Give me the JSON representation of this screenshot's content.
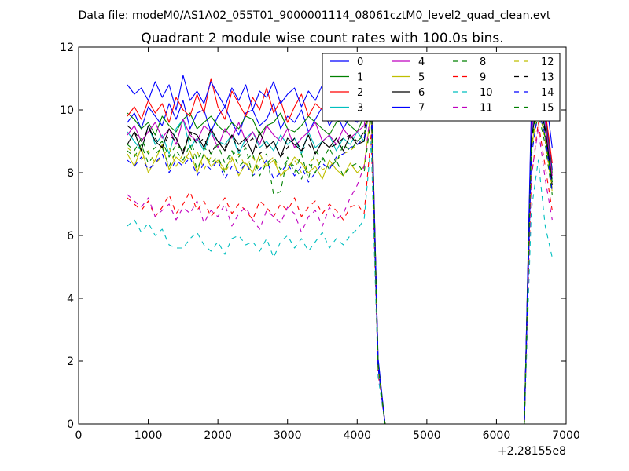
{
  "figure": {
    "suptitle": "Data file: modeM0/AS1A02_055T01_9000001114_08061cztM0_level2_quad_clean.evt"
  },
  "chart_data": {
    "type": "line",
    "title": "Quadrant 2 module wise count rates with 100.0s bins.",
    "xlabel": "",
    "ylabel": "",
    "xlim": [
      0,
      7000
    ],
    "ylim": [
      0,
      12
    ],
    "x_offset_label": "+2.28155e8",
    "x_ticks": [
      0,
      1000,
      2000,
      3000,
      4000,
      5000,
      6000,
      7000
    ],
    "y_ticks": [
      0,
      2,
      4,
      6,
      8,
      10,
      12
    ],
    "grid": false,
    "legend_position": "top-right",
    "legend_columns": 4,
    "x": [
      700,
      800,
      900,
      1000,
      1100,
      1200,
      1300,
      1400,
      1500,
      1600,
      1700,
      1800,
      1900,
      2000,
      2100,
      2200,
      2300,
      2400,
      2500,
      2600,
      2700,
      2800,
      2900,
      3000,
      3100,
      3200,
      3300,
      3400,
      3500,
      3600,
      3700,
      3800,
      3900,
      4000,
      4100,
      4200,
      4300,
      4400,
      4500,
      4600,
      4700,
      4800,
      4900,
      5000,
      5100,
      5200,
      5300,
      5400,
      5500,
      5600,
      5700,
      5800,
      5900,
      6000,
      6100,
      6200,
      6300,
      6400,
      6500,
      6600,
      6700,
      6800
    ],
    "series": [
      {
        "name": "0",
        "color": "#0000ff",
        "dash": "solid",
        "values": [
          9.6,
          9.9,
          9.4,
          10.1,
          9.8,
          9.5,
          10.2,
          9.7,
          10.3,
          9.4,
          9.9,
          10.0,
          9.3,
          9.8,
          10.1,
          9.6,
          9.2,
          9.9,
          10.0,
          9.5,
          9.7,
          10.2,
          9.4,
          9.8,
          9.6,
          10.0,
          9.3,
          9.7,
          10.1,
          9.5,
          9.9,
          9.4,
          9.8,
          9.6,
          10.0,
          10.3,
          2.0,
          0,
          0,
          0,
          0,
          0,
          0,
          0,
          0,
          0,
          0,
          0,
          0,
          0,
          0,
          0,
          0,
          0,
          0,
          0,
          0,
          0,
          9.6,
          10.8,
          9.9,
          8.1
        ]
      },
      {
        "name": "1",
        "color": "#008000",
        "dash": "solid",
        "values": [
          9.9,
          9.7,
          9.4,
          9.6,
          9.2,
          9.8,
          9.5,
          9.3,
          9.7,
          9.9,
          9.4,
          9.6,
          9.8,
          9.5,
          9.3,
          9.6,
          9.4,
          9.8,
          9.7,
          9.2,
          9.5,
          9.6,
          9.9,
          9.4,
          9.3,
          9.5,
          9.8,
          9.6,
          9.4,
          9.2,
          9.6,
          9.7,
          9.5,
          9.3,
          9.8,
          10.9,
          1.9,
          0,
          0,
          0,
          0,
          0,
          0,
          0,
          0,
          0,
          0,
          0,
          0,
          0,
          0,
          0,
          0,
          0,
          0,
          0,
          0,
          0,
          9.5,
          10.6,
          9.7,
          8.0
        ]
      },
      {
        "name": "2",
        "color": "#ff0000",
        "dash": "solid",
        "values": [
          9.8,
          10.1,
          9.7,
          10.3,
          9.9,
          10.2,
          9.6,
          10.4,
          10.0,
          9.8,
          10.5,
          9.9,
          11.0,
          10.1,
          9.7,
          10.6,
          10.2,
          9.8,
          10.4,
          10.0,
          10.7,
          9.9,
          10.3,
          9.6,
          10.1,
          10.5,
          9.8,
          10.2,
          10.0,
          9.7,
          10.3,
          9.9,
          10.1,
          9.8,
          10.4,
          11.0,
          2.0,
          0,
          0,
          0,
          0,
          0,
          0,
          0,
          0,
          0,
          0,
          0,
          0,
          0,
          0,
          0,
          0,
          0,
          0,
          0,
          0,
          0,
          9.7,
          10.9,
          10.0,
          8.3
        ]
      },
      {
        "name": "3",
        "color": "#00bfbf",
        "dash": "solid",
        "values": [
          9.3,
          9.0,
          8.7,
          9.5,
          8.9,
          9.2,
          8.6,
          9.4,
          9.7,
          8.8,
          9.1,
          8.7,
          9.3,
          9.0,
          8.9,
          9.2,
          8.6,
          9.1,
          9.3,
          8.8,
          9.0,
          8.7,
          9.2,
          8.9,
          9.1,
          8.6,
          9.3,
          8.8,
          9.0,
          9.2,
          8.7,
          9.1,
          8.9,
          9.3,
          9.0,
          10.5,
          1.9,
          0,
          0,
          0,
          0,
          0,
          0,
          0,
          0,
          0,
          0,
          0,
          0,
          0,
          0,
          0,
          0,
          0,
          0,
          0,
          0,
          0,
          9.2,
          10.5,
          9.5,
          7.8
        ]
      },
      {
        "name": "4",
        "color": "#bf00bf",
        "dash": "solid",
        "values": [
          9.2,
          9.5,
          9.0,
          9.3,
          9.6,
          9.1,
          9.4,
          8.9,
          9.7,
          9.2,
          9.0,
          9.5,
          9.3,
          8.8,
          9.4,
          9.1,
          9.6,
          9.0,
          9.3,
          8.9,
          9.5,
          9.2,
          9.0,
          9.4,
          8.8,
          9.1,
          9.3,
          9.6,
          9.0,
          9.2,
          8.9,
          9.4,
          9.1,
          9.3,
          9.5,
          10.7,
          1.9,
          0,
          0,
          0,
          0,
          0,
          0,
          0,
          0,
          0,
          0,
          0,
          0,
          0,
          0,
          0,
          0,
          0,
          0,
          0,
          0,
          0,
          9.3,
          10.6,
          9.6,
          7.9
        ]
      },
      {
        "name": "5",
        "color": "#bfbf00",
        "dash": "solid",
        "values": [
          8.6,
          8.2,
          8.8,
          8.0,
          8.4,
          8.9,
          8.1,
          8.5,
          8.3,
          8.7,
          8.0,
          8.6,
          8.2,
          8.4,
          8.1,
          8.5,
          7.9,
          8.3,
          8.0,
          8.6,
          8.2,
          8.4,
          7.9,
          8.1,
          8.5,
          8.3,
          8.0,
          8.2,
          7.8,
          8.4,
          8.1,
          7.9,
          8.3,
          8.0,
          8.2,
          10.0,
          1.8,
          0,
          0,
          0,
          0,
          0,
          0,
          0,
          0,
          0,
          0,
          0,
          0,
          0,
          0,
          0,
          0,
          0,
          0,
          0,
          0,
          0,
          8.8,
          10.1,
          9.1,
          7.5
        ]
      },
      {
        "name": "6",
        "color": "#000000",
        "dash": "solid",
        "values": [
          8.9,
          9.3,
          8.7,
          9.5,
          9.0,
          8.8,
          9.4,
          9.1,
          8.6,
          9.3,
          9.2,
          8.8,
          9.4,
          9.0,
          8.7,
          9.2,
          8.9,
          9.1,
          8.6,
          9.3,
          8.8,
          9.0,
          8.5,
          9.1,
          8.9,
          8.7,
          9.2,
          8.6,
          9.0,
          8.8,
          9.1,
          8.7,
          9.2,
          8.9,
          9.0,
          10.4,
          1.9,
          0,
          0,
          0,
          0,
          0,
          0,
          0,
          0,
          0,
          0,
          0,
          0,
          0,
          0,
          0,
          0,
          0,
          0,
          0,
          0,
          0,
          9.1,
          10.3,
          9.4,
          7.7
        ]
      },
      {
        "name": "7",
        "color": "#0000ff",
        "dash": "solid",
        "values": [
          10.8,
          10.5,
          10.7,
          10.3,
          10.9,
          10.4,
          10.8,
          10.0,
          11.1,
          10.3,
          10.6,
          10.2,
          10.9,
          10.5,
          10.1,
          10.7,
          10.3,
          10.8,
          10.0,
          10.6,
          10.4,
          10.9,
          10.2,
          10.5,
          10.7,
          10.1,
          10.6,
          10.3,
          10.8,
          10.4,
          10.0,
          10.5,
          10.2,
          10.6,
          10.3,
          10.8,
          2.1,
          0,
          0,
          0,
          0,
          0,
          0,
          0,
          0,
          0,
          0,
          0,
          0,
          0,
          0,
          0,
          0,
          0,
          0,
          0,
          0,
          0,
          10.0,
          11.7,
          10.6,
          8.8
        ]
      },
      {
        "name": "8",
        "color": "#008000",
        "dash": "dashed",
        "values": [
          8.7,
          8.5,
          8.9,
          8.3,
          8.6,
          8.8,
          8.2,
          8.7,
          8.4,
          8.9,
          8.1,
          8.6,
          8.3,
          8.5,
          8.0,
          8.7,
          8.2,
          8.4,
          8.6,
          7.9,
          8.3,
          8.5,
          8.1,
          8.4,
          8.2,
          7.8,
          8.3,
          8.0,
          8.5,
          8.1,
          8.4,
          7.9,
          8.2,
          8.3,
          8.0,
          9.8,
          1.8,
          0,
          0,
          0,
          0,
          0,
          0,
          0,
          0,
          0,
          0,
          0,
          0,
          0,
          0,
          0,
          0,
          0,
          0,
          0,
          0,
          0,
          8.6,
          9.9,
          8.9,
          7.3
        ]
      },
      {
        "name": "9",
        "color": "#ff0000",
        "dash": "dashed",
        "values": [
          7.2,
          7.0,
          6.8,
          7.1,
          6.6,
          6.9,
          7.3,
          6.7,
          7.0,
          7.4,
          6.8,
          7.1,
          6.6,
          6.9,
          7.2,
          6.7,
          7.0,
          6.8,
          6.5,
          7.1,
          6.9,
          6.6,
          7.0,
          6.8,
          7.2,
          6.6,
          6.9,
          7.1,
          6.7,
          7.0,
          6.8,
          6.5,
          6.9,
          7.0,
          6.7,
          9.2,
          1.6,
          0,
          0,
          0,
          0,
          0,
          0,
          0,
          0,
          0,
          0,
          0,
          0,
          0,
          0,
          0,
          0,
          0,
          0,
          0,
          0,
          0,
          7.8,
          9.6,
          8.2,
          6.8
        ]
      },
      {
        "name": "10",
        "color": "#00bfbf",
        "dash": "dashed",
        "values": [
          6.3,
          6.5,
          6.1,
          6.4,
          6.0,
          6.2,
          5.7,
          5.6,
          5.6,
          5.9,
          6.1,
          5.7,
          5.5,
          5.8,
          5.4,
          5.9,
          6.0,
          5.7,
          5.8,
          5.5,
          5.9,
          5.3,
          5.8,
          6.0,
          5.6,
          5.9,
          5.5,
          5.8,
          6.1,
          5.6,
          5.9,
          5.7,
          6.0,
          6.2,
          6.5,
          9.0,
          1.5,
          0,
          0,
          0,
          0,
          0,
          0,
          0,
          0,
          0,
          0,
          0,
          0,
          0,
          0,
          0,
          0,
          0,
          0,
          0,
          0,
          0,
          6.8,
          8.4,
          6.3,
          5.3
        ]
      },
      {
        "name": "11",
        "color": "#bf00bf",
        "dash": "dashed",
        "values": [
          7.3,
          7.1,
          6.9,
          7.2,
          6.6,
          6.8,
          7.0,
          6.5,
          6.9,
          6.7,
          7.1,
          6.4,
          6.8,
          6.6,
          7.0,
          6.3,
          6.7,
          6.9,
          6.5,
          6.2,
          6.8,
          6.6,
          6.4,
          6.9,
          6.7,
          6.1,
          6.6,
          6.8,
          6.3,
          6.9,
          6.5,
          6.7,
          7.2,
          7.6,
          8.2,
          10.1,
          1.7,
          0,
          0,
          0,
          0,
          0,
          0,
          0,
          0,
          0,
          0,
          0,
          0,
          0,
          0,
          0,
          0,
          0,
          0,
          0,
          0,
          0,
          7.9,
          9.4,
          7.8,
          6.5
        ]
      },
      {
        "name": "12",
        "color": "#bfbf00",
        "dash": "dashed",
        "values": [
          8.8,
          8.6,
          8.4,
          8.7,
          8.3,
          8.5,
          8.8,
          8.2,
          8.6,
          8.4,
          8.7,
          8.1,
          8.5,
          8.3,
          8.0,
          8.4,
          8.6,
          8.2,
          8.5,
          8.1,
          8.3,
          8.5,
          7.9,
          8.2,
          8.4,
          8.0,
          8.3,
          8.5,
          8.1,
          8.2,
          8.4,
          8.6,
          8.7,
          8.9,
          9.1,
          10.3,
          1.8,
          0,
          0,
          0,
          0,
          0,
          0,
          0,
          0,
          0,
          0,
          0,
          0,
          0,
          0,
          0,
          0,
          0,
          0,
          0,
          0,
          0,
          8.7,
          10.2,
          9.0,
          7.4
        ]
      },
      {
        "name": "13",
        "color": "#000000",
        "dash": "dashed",
        "values": [
          9.5,
          9.3,
          9.0,
          9.4,
          9.1,
          8.8,
          9.2,
          9.0,
          8.7,
          9.3,
          8.9,
          9.1,
          8.6,
          9.0,
          8.8,
          9.2,
          8.7,
          8.9,
          9.1,
          8.6,
          8.8,
          9.0,
          8.5,
          8.8,
          9.1,
          8.7,
          8.9,
          8.6,
          9.0,
          8.8,
          8.9,
          9.1,
          9.2,
          9.0,
          9.3,
          10.6,
          1.9,
          0,
          0,
          0,
          0,
          0,
          0,
          0,
          0,
          0,
          0,
          0,
          0,
          0,
          0,
          0,
          0,
          0,
          0,
          0,
          0,
          0,
          9.0,
          10.4,
          9.3,
          7.6
        ]
      },
      {
        "name": "14",
        "color": "#0000ff",
        "dash": "dashed",
        "values": [
          8.4,
          8.2,
          8.5,
          8.1,
          8.3,
          8.6,
          8.0,
          8.4,
          8.2,
          8.5,
          7.9,
          8.3,
          8.1,
          8.4,
          7.8,
          8.2,
          8.0,
          8.3,
          7.9,
          8.1,
          8.4,
          7.8,
          8.0,
          8.3,
          7.9,
          8.2,
          7.7,
          8.0,
          8.3,
          8.1,
          8.5,
          8.6,
          8.8,
          8.9,
          9.1,
          10.2,
          1.8,
          0,
          0,
          0,
          0,
          0,
          0,
          0,
          0,
          0,
          0,
          0,
          0,
          0,
          0,
          0,
          0,
          0,
          0,
          0,
          0,
          0,
          8.5,
          10.0,
          9.2,
          7.4
        ]
      },
      {
        "name": "15",
        "color": "#008000",
        "dash": "dashed",
        "values": [
          8.9,
          8.7,
          9.1,
          8.6,
          8.8,
          9.0,
          8.5,
          8.9,
          8.7,
          9.1,
          8.4,
          8.8,
          8.6,
          8.9,
          8.3,
          8.7,
          8.5,
          8.8,
          7.9,
          8.4,
          8.6,
          7.3,
          7.4,
          8.5,
          8.0,
          8.6,
          7.8,
          8.7,
          8.4,
          8.8,
          8.3,
          8.9,
          8.7,
          9.0,
          9.2,
          10.5,
          1.9,
          0,
          0,
          0,
          0,
          0,
          0,
          0,
          0,
          0,
          0,
          0,
          0,
          0,
          0,
          0,
          0,
          0,
          0,
          0,
          0,
          0,
          8.9,
          10.3,
          9.1,
          7.7
        ]
      }
    ]
  }
}
